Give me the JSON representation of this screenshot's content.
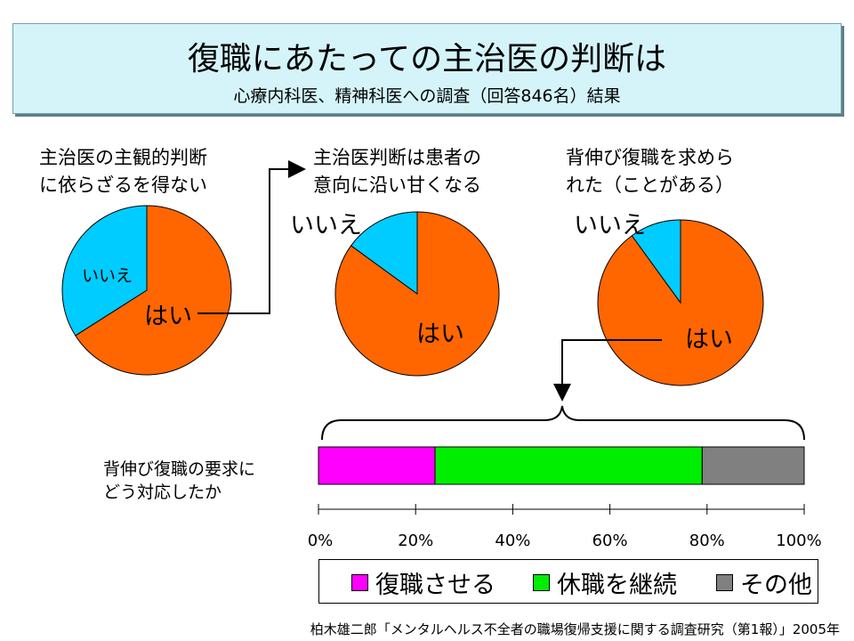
{
  "title": "復職にあたっての主治医の判断は",
  "subtitle": "心療内科医、精神科医への調査（回答846名）結果",
  "colors": {
    "yes": "#ff6600",
    "no": "#00ccff",
    "return": "#ff00ff",
    "leave": "#00ee00",
    "other": "#808080"
  },
  "chart_data": [
    {
      "type": "pie",
      "title_lines": [
        "主治医の主観的判断",
        "に依らざるを得ない"
      ],
      "slices": [
        {
          "label": "はい",
          "value": 66
        },
        {
          "label": "いいえ",
          "value": 34
        }
      ]
    },
    {
      "type": "pie",
      "title_lines": [
        "主治医判断は患者の",
        "意向に沿い甘くなる"
      ],
      "slices": [
        {
          "label": "はい",
          "value": 85
        },
        {
          "label": "いいえ",
          "value": 15
        }
      ]
    },
    {
      "type": "pie",
      "title_lines": [
        "背伸び復職を求めら",
        "れた（ことがある）"
      ],
      "slices": [
        {
          "label": "はい",
          "value": 90
        },
        {
          "label": "いいえ",
          "value": 10
        }
      ]
    },
    {
      "type": "bar",
      "stacked": true,
      "orientation": "horizontal",
      "unit": "%",
      "question_lines": [
        "背伸び復職の要求に",
        "どう対応したか"
      ],
      "series": [
        {
          "name": "復職させる",
          "value": 24
        },
        {
          "name": "休職を継続",
          "value": 55
        },
        {
          "name": "その他",
          "value": 21
        }
      ],
      "xlim": [
        0,
        100
      ],
      "ticks": [
        "0%",
        "20%",
        "40%",
        "60%",
        "80%",
        "100%"
      ]
    }
  ],
  "source": "柏木雄二郎「メンタルヘルス不全者の職場復帰支援に関する調査研究（第1報）」2005年"
}
